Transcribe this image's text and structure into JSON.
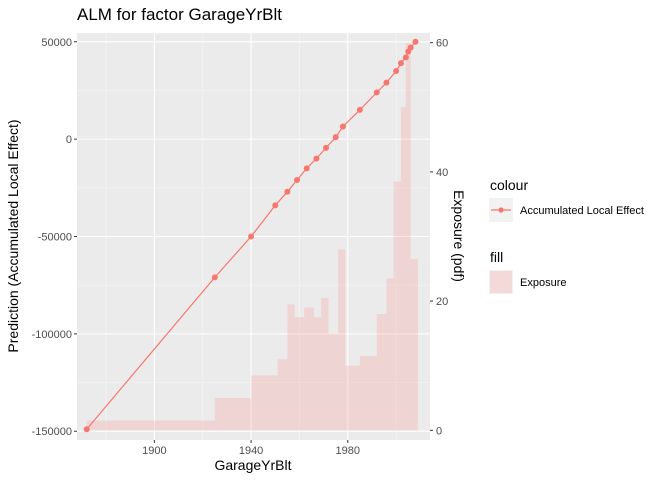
{
  "chart_data": {
    "type": "line",
    "title": "ALM for factor GarageYrBlt",
    "xlabel": "GarageYrBlt",
    "ylabel": "Prediction (Accumulated Local Effect)",
    "y2label": "Exposure (pdf)",
    "xlim": [
      1868,
      2014
    ],
    "ylim": [
      -154500,
      54500
    ],
    "y2lim": [
      -1.5,
      61.5
    ],
    "x_ticks": [
      1900,
      1940,
      1980
    ],
    "y_ticks": [
      -150000,
      -100000,
      -50000,
      0,
      50000
    ],
    "y2_ticks": [
      0,
      20,
      40,
      60
    ],
    "grid": true,
    "series": [
      {
        "name": "Accumulated Local Effect",
        "color": "#f8766d",
        "x": [
          1872,
          1925,
          1940,
          1950,
          1955,
          1959,
          1963,
          1967,
          1971,
          1975,
          1978,
          1985,
          1992,
          1996,
          2000,
          2002,
          2004,
          2005,
          2006,
          2008
        ],
        "y": [
          -149000,
          -71000,
          -50000,
          -34000,
          -27000,
          -21000,
          -15000,
          -10000,
          -4500,
          1000,
          6500,
          15000,
          24000,
          29000,
          35000,
          39000,
          42000,
          45000,
          47000,
          50000
        ]
      }
    ],
    "exposure": {
      "name": "Exposure",
      "color": "#f8766d",
      "bins": [
        {
          "x0": 1872,
          "x1": 1925,
          "y": 1.5
        },
        {
          "x0": 1925,
          "x1": 1940,
          "y": 5
        },
        {
          "x0": 1940,
          "x1": 1951,
          "y": 8.5
        },
        {
          "x0": 1951,
          "x1": 1955,
          "y": 11
        },
        {
          "x0": 1955,
          "x1": 1958,
          "y": 19.5
        },
        {
          "x0": 1958,
          "x1": 1962,
          "y": 17.5
        },
        {
          "x0": 1962,
          "x1": 1966,
          "y": 19
        },
        {
          "x0": 1966,
          "x1": 1969,
          "y": 17.5
        },
        {
          "x0": 1969,
          "x1": 1972,
          "y": 20.5
        },
        {
          "x0": 1972,
          "x1": 1976,
          "y": 15
        },
        {
          "x0": 1976,
          "x1": 1979,
          "y": 28
        },
        {
          "x0": 1979,
          "x1": 1985,
          "y": 10
        },
        {
          "x0": 1985,
          "x1": 1992,
          "y": 11.5
        },
        {
          "x0": 1992,
          "x1": 1996,
          "y": 18
        },
        {
          "x0": 1996,
          "x1": 1999,
          "y": 23.5
        },
        {
          "x0": 1999,
          "x1": 2002,
          "y": 38.5
        },
        {
          "x0": 2002,
          "x1": 2004,
          "y": 50
        },
        {
          "x0": 2004,
          "x1": 2006,
          "y": 60
        },
        {
          "x0": 2006,
          "x1": 2009,
          "y": 26.5
        }
      ]
    },
    "legend": {
      "placement": "right",
      "colour_title": "colour",
      "fill_title": "fill",
      "colour_label": "Accumulated Local Effect",
      "fill_label": "Exposure"
    }
  }
}
